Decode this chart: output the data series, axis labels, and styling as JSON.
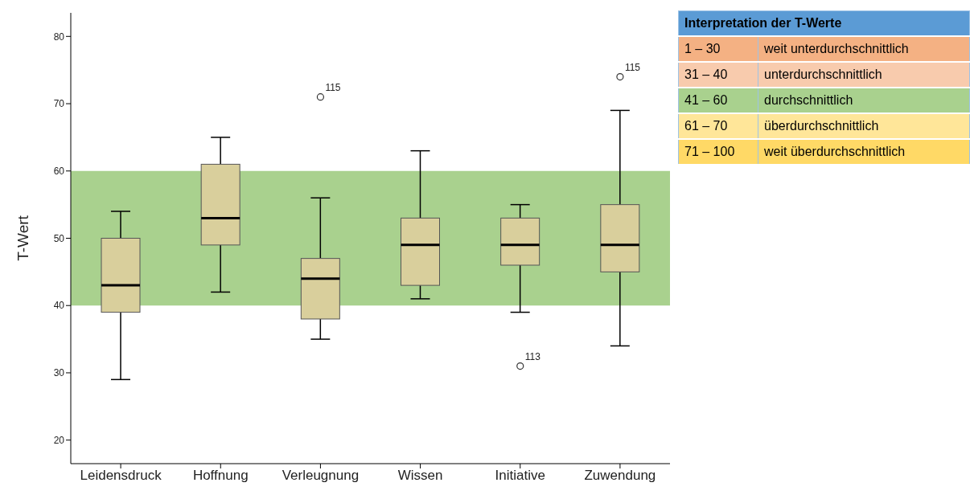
{
  "chart_data": [
    {
      "type": "box",
      "ylabel": "T-Wert",
      "categories": [
        "Leidensdruck",
        "Hoffnung",
        "Verleugnung",
        "Wissen",
        "Initiative",
        "Zuwendung"
      ],
      "series": [
        {
          "color": "#d9cf9c",
          "boxes": [
            {
              "low": 29,
              "q1": 39,
              "median": 43,
              "q3": 50,
              "high": 54
            },
            {
              "low": 42,
              "q1": 49,
              "median": 53,
              "q3": 61,
              "high": 65
            },
            {
              "low": 35,
              "q1": 38,
              "median": 44,
              "q3": 47,
              "high": 56,
              "outliers": [
                71
              ]
            },
            {
              "low": 41,
              "q1": 43,
              "median": 49,
              "q3": 53,
              "high": 63
            },
            {
              "low": 39,
              "q1": 46,
              "median": 49,
              "q3": 53,
              "high": 55,
              "outliers": [
                31
              ]
            },
            {
              "low": 34,
              "q1": 45,
              "median": 49,
              "q3": 55,
              "high": 69,
              "outliers": [
                74
              ]
            }
          ]
        }
      ],
      "ylim": [
        16.5,
        83.5
      ],
      "yticks": [
        20,
        30,
        40,
        50,
        60,
        70,
        80
      ],
      "grid": false,
      "legend": false,
      "bands": [
        {
          "axis": "y",
          "from": 40,
          "to": 60,
          "color": "#a9d18e"
        }
      ],
      "annotations": [
        "115",
        "113",
        "115"
      ]
    },
    {
      "type": "other",
      "title": "Interpretation der T-Werte",
      "colors": [
        "#f4b183",
        "#f8cbad",
        "#a9d18e",
        "#ffe699",
        "#ffd966"
      ],
      "annotations": [
        "1 – 30",
        "weit unterdurchschnittlich",
        "31 – 40",
        "unterdurchschnittlich",
        "41 – 60",
        "durchschnittlich",
        "61 – 70",
        "überdurchschnittlich",
        "71 – 100",
        "weit überdurchschnittlich"
      ]
    }
  ]
}
